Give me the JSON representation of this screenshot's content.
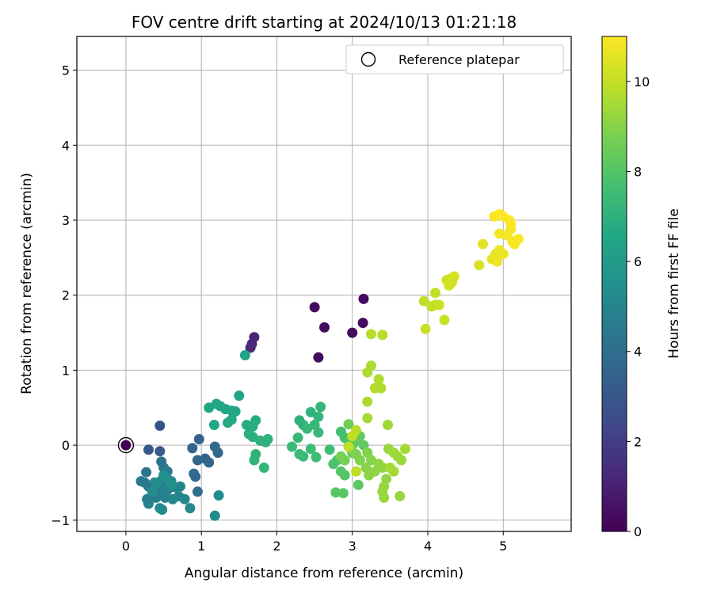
{
  "chart_data": {
    "type": "scatter",
    "title": "FOV centre drift starting at 2024/10/13 01:21:18",
    "xlabel": "Angular distance from reference (arcmin)",
    "ylabel": "Rotation from reference (arcmin)",
    "xlim": [
      -0.65,
      5.9
    ],
    "ylim": [
      -1.15,
      5.45
    ],
    "xticks": [
      "0",
      "1",
      "2",
      "3",
      "4",
      "5"
    ],
    "yticks": [
      "−1",
      "0",
      "1",
      "2",
      "3",
      "4",
      "5"
    ],
    "grid": true,
    "legend": {
      "position": "top-right",
      "entries": [
        "Reference platepar"
      ]
    },
    "colorbar": {
      "label": "Hours from first FF file",
      "range": [
        0,
        11
      ],
      "ticks": [
        "0",
        "2",
        "4",
        "6",
        "8",
        "10"
      ],
      "colormap": "viridis"
    },
    "reference_point": {
      "x": 0,
      "y": 0
    },
    "series": [
      {
        "points": [
          [
            0.0,
            0.0,
            0.0
          ],
          [
            2.5,
            1.84,
            0.3
          ],
          [
            2.63,
            1.57,
            0.3
          ],
          [
            2.55,
            1.17,
            0.3
          ],
          [
            3.15,
            1.95,
            0.3
          ],
          [
            3.14,
            1.63,
            0.3
          ],
          [
            3.0,
            1.5,
            0.3
          ],
          [
            1.7,
            1.44,
            1.2
          ],
          [
            1.67,
            1.35,
            1.2
          ],
          [
            1.65,
            1.3,
            1.3
          ],
          [
            0.45,
            0.26,
            2.8
          ],
          [
            0.3,
            -0.06,
            3.0
          ],
          [
            0.45,
            -0.08,
            3.1
          ],
          [
            0.97,
            0.08,
            3.4
          ],
          [
            0.88,
            -0.04,
            3.5
          ],
          [
            1.05,
            -0.18,
            3.5
          ],
          [
            0.95,
            -0.2,
            3.6
          ],
          [
            1.1,
            -0.23,
            3.6
          ],
          [
            1.18,
            -0.02,
            3.7
          ],
          [
            1.22,
            -0.1,
            3.7
          ],
          [
            0.9,
            -0.38,
            3.8
          ],
          [
            0.92,
            -0.42,
            3.8
          ],
          [
            0.95,
            -0.62,
            4.0
          ],
          [
            0.47,
            -0.22,
            4.2
          ],
          [
            0.27,
            -0.36,
            4.3
          ],
          [
            0.5,
            -0.3,
            4.3
          ],
          [
            0.55,
            -0.35,
            4.4
          ],
          [
            0.2,
            -0.48,
            4.5
          ],
          [
            0.25,
            -0.5,
            4.5
          ],
          [
            0.3,
            -0.55,
            4.5
          ],
          [
            0.38,
            -0.5,
            4.6
          ],
          [
            0.42,
            -0.58,
            4.6
          ],
          [
            0.48,
            -0.46,
            4.6
          ],
          [
            0.5,
            -0.55,
            4.7
          ],
          [
            0.45,
            -0.62,
            4.7
          ],
          [
            0.4,
            -0.7,
            4.7
          ],
          [
            0.3,
            -0.78,
            4.8
          ],
          [
            0.28,
            -0.72,
            4.8
          ],
          [
            0.52,
            -0.7,
            4.8
          ],
          [
            0.55,
            -0.6,
            4.9
          ],
          [
            0.6,
            -0.48,
            4.9
          ],
          [
            0.65,
            -0.56,
            4.9
          ],
          [
            0.72,
            -0.55,
            5.0
          ],
          [
            0.62,
            -0.72,
            5.0
          ],
          [
            0.7,
            -0.68,
            5.0
          ],
          [
            0.78,
            -0.72,
            5.1
          ],
          [
            0.85,
            -0.84,
            5.1
          ],
          [
            0.45,
            -0.84,
            5.2
          ],
          [
            0.48,
            -0.86,
            5.2
          ],
          [
            1.18,
            -0.94,
            5.3
          ],
          [
            1.23,
            -0.67,
            5.3
          ],
          [
            0.35,
            -0.62,
            5.4
          ],
          [
            0.4,
            -0.5,
            5.4
          ],
          [
            0.5,
            -0.4,
            5.5
          ],
          [
            0.55,
            -0.45,
            5.5
          ],
          [
            0.6,
            -0.52,
            5.6
          ],
          [
            1.58,
            1.2,
            6.3
          ],
          [
            1.5,
            0.66,
            6.4
          ],
          [
            1.1,
            0.5,
            6.4
          ],
          [
            1.2,
            0.55,
            6.5
          ],
          [
            1.25,
            0.52,
            6.5
          ],
          [
            1.32,
            0.48,
            6.5
          ],
          [
            1.4,
            0.46,
            6.6
          ],
          [
            1.45,
            0.45,
            6.6
          ],
          [
            1.17,
            0.27,
            6.6
          ],
          [
            1.35,
            0.3,
            6.7
          ],
          [
            1.4,
            0.34,
            6.7
          ],
          [
            1.6,
            0.27,
            6.8
          ],
          [
            1.68,
            0.25,
            6.8
          ],
          [
            1.72,
            0.33,
            6.8
          ],
          [
            1.63,
            0.15,
            6.9
          ],
          [
            1.68,
            0.11,
            6.9
          ],
          [
            1.78,
            0.06,
            7.0
          ],
          [
            1.85,
            0.04,
            7.0
          ],
          [
            1.88,
            0.08,
            7.0
          ],
          [
            1.72,
            -0.12,
            7.1
          ],
          [
            1.7,
            -0.2,
            7.1
          ],
          [
            1.83,
            -0.3,
            7.2
          ],
          [
            2.3,
            0.33,
            7.0
          ],
          [
            2.35,
            0.27,
            7.1
          ],
          [
            2.45,
            0.44,
            7.1
          ],
          [
            2.58,
            0.51,
            7.2
          ],
          [
            2.55,
            0.38,
            7.2
          ],
          [
            2.28,
            0.1,
            7.3
          ],
          [
            2.4,
            0.22,
            7.3
          ],
          [
            2.5,
            0.27,
            7.3
          ],
          [
            2.55,
            0.17,
            7.3
          ],
          [
            2.2,
            -0.02,
            7.4
          ],
          [
            2.3,
            -0.12,
            7.4
          ],
          [
            2.35,
            -0.15,
            7.4
          ],
          [
            2.45,
            -0.05,
            7.5
          ],
          [
            2.52,
            -0.16,
            7.5
          ],
          [
            2.7,
            -0.06,
            7.6
          ],
          [
            2.85,
            0.18,
            7.7
          ],
          [
            2.9,
            0.1,
            7.7
          ],
          [
            2.95,
            0.05,
            7.8
          ],
          [
            3.0,
            0.0,
            7.8
          ],
          [
            2.8,
            -0.2,
            7.9
          ],
          [
            2.75,
            -0.25,
            7.9
          ],
          [
            2.85,
            -0.35,
            8.0
          ],
          [
            2.9,
            -0.4,
            8.0
          ],
          [
            2.78,
            -0.63,
            8.1
          ],
          [
            2.88,
            -0.64,
            8.1
          ],
          [
            3.08,
            -0.53,
            8.2
          ],
          [
            3.0,
            -0.1,
            8.2
          ],
          [
            3.05,
            0.05,
            8.3
          ],
          [
            3.1,
            0.12,
            8.3
          ],
          [
            3.15,
            0.0,
            8.3
          ],
          [
            2.95,
            0.28,
            8.6
          ],
          [
            2.85,
            -0.15,
            8.7
          ],
          [
            2.9,
            -0.2,
            8.7
          ],
          [
            2.98,
            -0.05,
            8.8
          ],
          [
            3.05,
            -0.12,
            8.8
          ],
          [
            3.1,
            -0.2,
            8.9
          ],
          [
            3.2,
            -0.1,
            8.9
          ],
          [
            3.25,
            -0.2,
            9.0
          ],
          [
            3.18,
            -0.3,
            9.0
          ],
          [
            3.22,
            -0.4,
            9.1
          ],
          [
            3.3,
            -0.35,
            9.1
          ],
          [
            3.35,
            -0.25,
            9.1
          ],
          [
            3.4,
            -0.3,
            9.2
          ],
          [
            3.45,
            -0.45,
            9.2
          ],
          [
            3.42,
            -0.55,
            9.2
          ],
          [
            3.4,
            -0.62,
            9.3
          ],
          [
            3.42,
            -0.7,
            9.3
          ],
          [
            3.48,
            -0.05,
            9.3
          ],
          [
            3.55,
            -0.1,
            9.4
          ],
          [
            3.6,
            -0.15,
            9.4
          ],
          [
            3.65,
            -0.2,
            9.4
          ],
          [
            3.7,
            -0.05,
            9.5
          ],
          [
            3.5,
            -0.3,
            9.5
          ],
          [
            3.55,
            -0.35,
            9.5
          ],
          [
            3.47,
            0.27,
            9.4
          ],
          [
            3.63,
            -0.68,
            9.3
          ],
          [
            3.2,
            0.36,
            9.5
          ],
          [
            3.2,
            0.58,
            9.6
          ],
          [
            3.25,
            1.06,
            9.6
          ],
          [
            3.2,
            0.97,
            9.6
          ],
          [
            3.3,
            0.76,
            9.7
          ],
          [
            3.35,
            0.88,
            9.7
          ],
          [
            3.38,
            0.76,
            9.7
          ],
          [
            3.25,
            1.48,
            9.8
          ],
          [
            3.4,
            1.47,
            9.8
          ],
          [
            3.05,
            0.2,
            9.8
          ],
          [
            3.0,
            0.12,
            9.9
          ],
          [
            2.95,
            -0.02,
            9.9
          ],
          [
            3.05,
            -0.35,
            9.9
          ],
          [
            3.95,
            1.92,
            9.9
          ],
          [
            4.1,
            2.03,
            10.0
          ],
          [
            4.05,
            1.85,
            10.0
          ],
          [
            4.1,
            1.87,
            10.0
          ],
          [
            4.15,
            1.87,
            10.1
          ],
          [
            4.22,
            1.67,
            10.1
          ],
          [
            3.97,
            1.55,
            10.1
          ],
          [
            4.25,
            2.2,
            10.2
          ],
          [
            4.3,
            2.22,
            10.2
          ],
          [
            4.35,
            2.25,
            10.3
          ],
          [
            4.28,
            2.13,
            10.3
          ],
          [
            4.32,
            2.17,
            10.3
          ],
          [
            4.68,
            2.4,
            10.4
          ],
          [
            4.73,
            2.68,
            10.5
          ],
          [
            4.85,
            2.48,
            10.6
          ],
          [
            4.9,
            2.55,
            10.6
          ],
          [
            4.92,
            2.45,
            10.7
          ],
          [
            4.95,
            2.6,
            10.7
          ],
          [
            5.0,
            2.55,
            10.7
          ],
          [
            4.95,
            2.82,
            10.8
          ],
          [
            5.05,
            2.8,
            10.8
          ],
          [
            5.1,
            2.88,
            10.8
          ],
          [
            5.12,
            2.72,
            10.9
          ],
          [
            5.15,
            2.68,
            10.9
          ],
          [
            5.2,
            2.75,
            10.9
          ],
          [
            4.88,
            3.05,
            10.9
          ],
          [
            4.95,
            3.08,
            11.0
          ],
          [
            5.0,
            3.05,
            11.0
          ],
          [
            5.08,
            3.0,
            11.0
          ],
          [
            5.1,
            2.95,
            11.0
          ]
        ]
      }
    ]
  }
}
